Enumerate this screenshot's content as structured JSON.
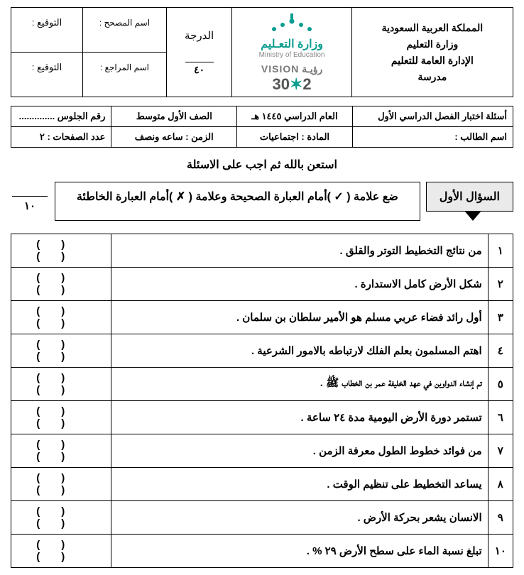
{
  "header": {
    "country": "المملكة العربية السعودية",
    "ministry": "وزارة التعليم",
    "admin": "الإدارة العامة للتعليم",
    "school": "مدرسة",
    "logo_ar": "وزارة التعـليم",
    "logo_en": "Ministry of Education",
    "vision_label": "رؤيـة VISION",
    "vision_year_a": "2",
    "vision_year_b": "3",
    "vision_year_c": "0",
    "grade_label": "الدرجة",
    "score": "٤٠",
    "examiner_label": "اسم المصحح :",
    "reviewer_label": "اسم المراجع :",
    "signature_label": "التوقيع :"
  },
  "info": {
    "title": "أسئلة اختبار الفصل الدراسي الأول",
    "year": "العام الدراسي ١٤٤٥ هـ",
    "class": "الصف الأول متوسط",
    "seat_label": "رقم الجلوس ..............",
    "student_label": "اسم الطالب :",
    "subject_label": "المادة : اجتماعيات",
    "time_label": "الزمن : ساعه ونصف",
    "pages_label": "عدد الصفحات : ٢"
  },
  "instruction": "استعن بالله ثم اجب على الاسئلة",
  "q1": {
    "label": "السؤال الأول",
    "text": "ضع علامة ( ✓ )أمام العبارة الصحيحة  وعلامة ( ✗ )أمام العبارة الخاطئة",
    "mark_total": "١٠"
  },
  "items": [
    {
      "n": "١",
      "t": "من نتائج التخطيط التوتر والقلق ."
    },
    {
      "n": "٢",
      "t": "شكل الأرض كامل الاستدارة ."
    },
    {
      "n": "٣",
      "t": "أول رائد فضاء عربي مسلم هو الأمير سلطان بن سلمان ."
    },
    {
      "n": "٤",
      "t": "اهتم المسلمون بعلم الفلك لارتباطه بالامور الشرعية ."
    },
    {
      "n": "٥",
      "t": "تم إنشاء الدواوين في عهد الخليفة عمر بن الخطاب ﷺ ."
    },
    {
      "n": "٦",
      "t": "تستمر دورة الأرض اليومية مدة ٢٤ ساعة ."
    },
    {
      "n": "٧",
      "t": "من فوائد خطوط الطول معرفة الزمن ."
    },
    {
      "n": "٨",
      "t": "يساعد التخطيط على تنظيم الوقت ."
    },
    {
      "n": "٩",
      "t": "الانسان يشعر بحركة الأرض ."
    },
    {
      "n": "١٠",
      "t": "تبلغ نسبة الماء على سطح الأرض ٢٩ % ."
    }
  ],
  "answer_brackets": "()()"
}
